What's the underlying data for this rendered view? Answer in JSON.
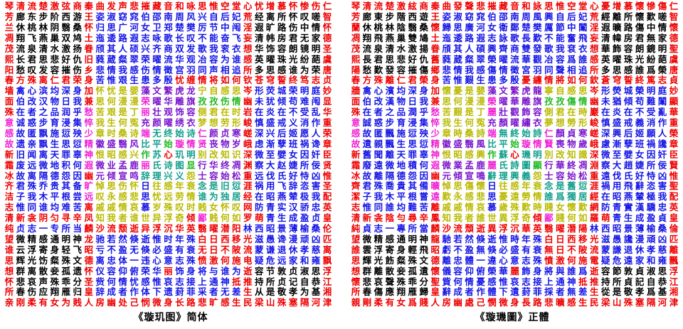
{
  "palette": {
    "R": "#ee0000",
    "K": "#000000",
    "B": "#1414e6",
    "Y": "#b9b900",
    "P": "#7a14cc",
    "M": "#f01fd2",
    "G": "#1fba1f",
    "C": "#0f9e8a"
  },
  "background": "#ffffff",
  "color_map": [
    "RRRRRRRRRRRRRRRRRRRRRRRRRRRRR",
    "RKKKKKKRBBBBBBBBBBBBBRKKKKKKR",
    "RKKKKKKRBBBBBBBBBBBBBRKKKKKKR",
    "RKKKKKKRBBBBBBBBBBBBBRKKKKKKR",
    "RKKKKKKRBBBBBBBBBBBBBRKKKKKKR",
    "RKKKKKKRBBBBBBBBBBBBBRKKKKKKR",
    "RKKKKKKRBBBBBBBBBBBBBRKKKKKKR",
    "RRRRRRRRBBBBBBBRRRRRRRRRRRRRR",
    "RBBBBBBRYYYYPPPPPYYYYRBBBBBBR",
    "RBBBBBBRYYYYMPPPPGGGGRBBBBBBR",
    "RBBBBBBMYYYYMPPPPYYYYRBBBBBBR",
    "MBBBBBBMYYYYPPPPPYYYYRBBBBBBR",
    "MBBBBBBMYYYYMCCCCMPPPRBBBBBBR",
    "MBBBBBBMPPPPCCGMMMPPPRBBBBBBR",
    "RBBBBBBMYYYYGCRCCYYYYRBBBBBBR",
    "RBBBBBBMPPPPMCCCGPPPPRBBBBBBR",
    "RBBBBBBRPPPPCCCCYPPPPRBBBBBBR",
    "RBBBBBBMYYYYBYYYYCCCCRBBBBBBR",
    "RBBBBBBMYYYYBYYYYCCCCRBBBBBBR",
    "RBBBBBBRYYYYBYYYYYYYYRBBBBBBR",
    "RRRRRRRRYYYYYYYYRMYYYRRBBBBBR",
    "RBBBBBBRRRRRRRRRRRRRRBBBBBBBR",
    "RKKKKKKRBBBBBBBBBRRRRRBBBBBBR",
    "RKKKKKKRBBBBBBBBBRRRRRBBBBBBR",
    "RKKKKKKRBBBBBBBBBRRRRRBBBBBBR",
    "RKKKKKKRBBBBBBRBBBBBBRKKKKKKR",
    "RKKKKKKRBBBBBBBBBBBBRRKKKKKKR",
    "RKKKKKKRBBBBBBBBBBBBBRKKKKKKR",
    "RRRRRRRRRRRRRRRRRRRRRRRRRRRRR"
  ],
  "left_grid": {
    "caption": "《璇玑图》简体",
    "rows": [
      "琴清流楚激弦商秦曲发声悲摧藏音和咏思惟空堂心忧增慕怀惨伤仁",
      "芳廊东步阶西游王姿淑窈窕伯邵南周风兴自后妃荒经离所怀叹嗟智",
      "兰休桃林阴翳桑怀归思广河女卫郑楚樊厉节中闱淫遐旷路伤中情怀",
      "凋翔飞燕巢双鸠土迤逶路遐志咏歌长叹不能奋飞妄清帏房君无家德",
      "茂流泉清水激扬眷颀其人硕兴齐商双发歌我衮衣想华饰容朗镜明圣",
      "熙长君思悲好仇旧蕤葳粲翠荣曜流华观冶容为谁感英曜珠光纷葩虞",
      "阳愁叹发容摧伤乡悲情我感伤情徵宫羽同声相追所多思感谁为荣唐",
      "春方殊离仁君荣身苦惟艰生患多殷忧缠情将如何钦苍穹誓终笃志贞",
      "墙禽心滨均深身加怀忧是婴藻文繁虎龙宁自感思岑形荧城荣明庭妙",
      "面伯改汉物日我兼思何漫漫荣曜华雕旗孜孜伤情幽未犹倾苟难闱显",
      "殊在者之品润乎愁苦艰是丁丽壮观饰容侧君在时岩在炎在不受乱华",
      "意诚惑步育浸集悴我生何冤充颜曜绣衣梦想劳形峻慎盛戒义消作重",
      "感故匿飘施愆殃少章时桑诗端无终始诗仁颜贞寒嵯深兴后姬愿人荣",
      "故遗亲飘生思愆精徽盛翳风比平始璇情贤丧物岁峨虑渐孽班祸谗章",
      "新旧闻离天罪辜神恨昭感兴作苏心玑明别改知识深微至嬖女因奸臣",
      "霜废远微地积何遐微业孟鹿丽氏诗图显行华终凋渊察大赵婕所佞贤",
      "冰故离隔德怨因幽元倾宣鸣辞理兴义怨士容始松重远伐氏好恃凶惟",
      "齐君殊乔贵其备旷悼思伤怀日往感年衰念是旧愆涯祸用飞辞恣害圣",
      "洁子我木平根尝远叹永感悲思忧远劳情谁为独居经在昭燕辇极我配",
      "志惟同谁均难苦离戚戚情哀慕岁殊叹时贱女怀叹网防青实汉骄忠英",
      "清新衾阴匀寻辛凤知我者谁世异浮奇倾鄙贱何如罗萌青生成盈贞皇",
      "纯贞志一专所当麟沙流颓逝异浮沉华英翳曜潜阳林西昭景薄榆桑伦",
      "望微精感通明神龙驰若然倏逝惟时年殊白日西移光滋愚谗漫顽凶匹",
      "谁云浮寄身轻飞昭亏不盈无倏必盛有衰无日不陂流蒙谦退休孝慈离",
      "思辉光饬粲殊文德离忠体一违心意志殊愤激何施电疑危远家和雍飘",
      "想群离散妾孤遗怀仪容仰俯荣华丽饰身将与谁为逝容节敦贞淑思浮",
      "怀悲哀声殊乖分圣赀何情忧感惟哀志接上通神抵推持所贞记自恭江",
      "所春伤应翔雁归皇辞成者作体下遗葑菲采者无差生从是敬孝为基湘",
      "亲刚柔有女为贱人房幽处己悯微身长路悲旷感生民梁山殊塞隔河津"
    ]
  },
  "right_grid": {
    "caption": "《璇璣圖》正體",
    "rows": [
      "琴清流楚激絃商秦曲發聲悲摧藏音和詠思惟空堂心憂增慕懷慘傷仁",
      "芳廊東步階西遊王姿淑窈窕伯邵南周風興自后妃荒經離所懷歎嗟智",
      "蘭休桃林陰翳桑懷歸思廣河女衛鄭楚樊厲節中闈淫遐曠路傷中情懷",
      "凋翔飛燕巢雙鳩土迤逶路遐志詠歌長歎不能奮飛妄清幃房君無家德",
      "茂流泉清水激揚眷頎其人碩興齊商雙發歌我袞衣想華飾容朗鏡明聖",
      "熙長君思悲好仇舊蕤葳粲翠榮曜流華觀冶容爲誰感英曜珠光紛葩虞",
      "陽愁歎發容摧傷鄉悲情我感傷情徵宮羽同聲相追所多思感誰爲榮唐",
      "春方殊離仁君榮身苦惟艱生患多殷憂纏情將如何欽蒼穹誓終篤志貞",
      "牆禽心濱均深身加懷憂是嬰藻文繁虎龍寧自感思岑形熒城榮明庭妙",
      "面伯改漢物日我兼思何漫漫榮曜華雕旗孜孜傷情幽未猶傾苟難闈顯",
      "殊在者之品潤乎愁苦艱是丁麗壯觀飾容側君在時巖在炎在不受亂華",
      "意誠惑步育浸集悴我生何冤充顏曜繡衣夢想勞形峻慎盛戒義消作重",
      "感故匿飄施愆殃少章時桑詩端無終始詩仁顏貞寒嵯深興后姬願人榮",
      "故遺親飄生思愆精徽盛翳風比平始璇情賢喪物歲峨慮漸孽班禍讒章",
      "新舊聞離天罪辜神恨昭感興作蘇心璣明別改知識深微至嬖女因奸臣",
      "霜廢遠微地積何遐微業孟鹿麗氏詩圖顯行華終凋淵察大趙婕所佞賢",
      "冰故離隔德怨因幽元傾宣鳴辭理興義怨士容始松重遠伐氏好恃凶惟",
      "齊君殊喬貴其備曠悼思傷懷日往感年衰念是舊愆涯禍用飛辭恣害聖",
      "潔子我木平根嘗遠歎永感悲思憂遠勞情誰爲獨居經在昭燕輦極我配",
      "志惟同誰均難苦離戚戚情哀慕歲殊歎時賤女懷歎網防青實漢驕忠英",
      "清新衾陰勻尋辛鳳知我者誰世異浮奇傾鄙賤何如羅萌青生成盈貞皇",
      "純貞志一專所當麟沙流頹逝異浮沉華英翳曜潛陽林西昭景薄榆桑倫",
      "望微精感通明神龍馳若然倏逝惟時年殊白日西移光滋愚讒漫頑凶匹",
      "誰雲浮寄身輕飛昭虧不盈無倏必盛有衰無日不陂流蒙謙退休孝慈離",
      "思輝光飭粲殊文德離忠體一違心意志殊憤激何施電疑危遠家和雍飄",
      "想群離散妾孤遺懷儀容仰俯榮華麗飾身將與誰爲逝容節敦貞淑思浮",
      "懷悲哀聲殊乖分聖貲何情憂感惟哀志接上通神抵推持所貞記自恭江",
      "所春傷應翔雁歸皇辭成者作體下遺葑菲採者無差生從是敬孝爲基湘",
      "親剛柔有女爲賤人房幽處己憫微身長路悲曠感生民梁山殊塞隔河津"
    ]
  }
}
